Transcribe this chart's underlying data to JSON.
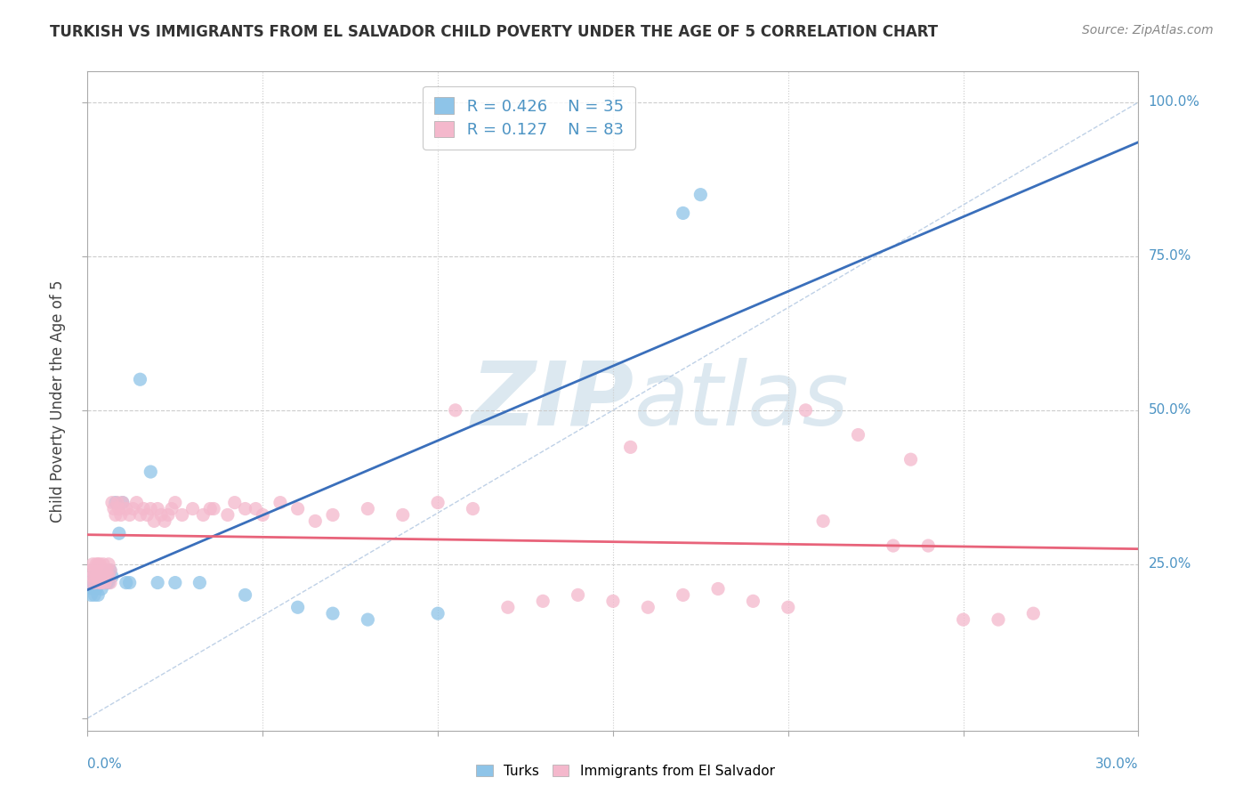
{
  "title": "TURKISH VS IMMIGRANTS FROM EL SALVADOR CHILD POVERTY UNDER THE AGE OF 5 CORRELATION CHART",
  "source": "Source: ZipAtlas.com",
  "ylabel": "Child Poverty Under the Age of 5",
  "xmin": 0.0,
  "xmax": 0.3,
  "ymin": 0.0,
  "ymax": 1.05,
  "watermark_zip": "ZIP",
  "watermark_atlas": "atlas",
  "legend_r1": "R = 0.426",
  "legend_n1": "N = 35",
  "legend_r2": "R = 0.127",
  "legend_n2": "N = 83",
  "color_turks": "#8ec4e8",
  "color_salvador": "#f4b8cc",
  "color_line_turks": "#3a6fbb",
  "color_line_salvador": "#e8637a",
  "color_diagonal": "#b8cce4",
  "turks_x": [
    0.001,
    0.001,
    0.0015,
    0.0015,
    0.002,
    0.002,
    0.0025,
    0.0025,
    0.003,
    0.003,
    0.0035,
    0.004,
    0.0045,
    0.005,
    0.0055,
    0.006,
    0.0065,
    0.007,
    0.008,
    0.009,
    0.01,
    0.011,
    0.012,
    0.015,
    0.018,
    0.02,
    0.025,
    0.032,
    0.045,
    0.06,
    0.07,
    0.08,
    0.1,
    0.17,
    0.175
  ],
  "turks_y": [
    0.22,
    0.2,
    0.23,
    0.21,
    0.22,
    0.2,
    0.22,
    0.21,
    0.23,
    0.2,
    0.22,
    0.21,
    0.22,
    0.23,
    0.22,
    0.22,
    0.24,
    0.23,
    0.35,
    0.3,
    0.35,
    0.22,
    0.22,
    0.55,
    0.4,
    0.22,
    0.22,
    0.22,
    0.2,
    0.18,
    0.17,
    0.16,
    0.17,
    0.82,
    0.85
  ],
  "salvador_x": [
    0.001,
    0.001,
    0.0015,
    0.0015,
    0.002,
    0.002,
    0.0025,
    0.0025,
    0.003,
    0.003,
    0.0035,
    0.0035,
    0.004,
    0.004,
    0.0045,
    0.0045,
    0.005,
    0.005,
    0.0055,
    0.006,
    0.006,
    0.0065,
    0.0065,
    0.007,
    0.0075,
    0.008,
    0.0085,
    0.009,
    0.0095,
    0.01,
    0.011,
    0.012,
    0.013,
    0.014,
    0.015,
    0.016,
    0.017,
    0.018,
    0.019,
    0.02,
    0.021,
    0.022,
    0.023,
    0.024,
    0.025,
    0.027,
    0.03,
    0.033,
    0.036,
    0.04,
    0.045,
    0.05,
    0.055,
    0.06,
    0.065,
    0.07,
    0.08,
    0.09,
    0.1,
    0.11,
    0.12,
    0.13,
    0.14,
    0.15,
    0.16,
    0.17,
    0.18,
    0.19,
    0.2,
    0.21,
    0.22,
    0.23,
    0.24,
    0.25,
    0.26,
    0.27,
    0.035,
    0.042,
    0.048,
    0.105,
    0.155,
    0.205,
    0.235
  ],
  "salvador_y": [
    0.24,
    0.22,
    0.25,
    0.23,
    0.24,
    0.22,
    0.25,
    0.23,
    0.25,
    0.24,
    0.25,
    0.22,
    0.24,
    0.22,
    0.25,
    0.23,
    0.24,
    0.22,
    0.24,
    0.23,
    0.25,
    0.24,
    0.22,
    0.35,
    0.34,
    0.33,
    0.35,
    0.34,
    0.33,
    0.35,
    0.34,
    0.33,
    0.34,
    0.35,
    0.33,
    0.34,
    0.33,
    0.34,
    0.32,
    0.34,
    0.33,
    0.32,
    0.33,
    0.34,
    0.35,
    0.33,
    0.34,
    0.33,
    0.34,
    0.33,
    0.34,
    0.33,
    0.35,
    0.34,
    0.32,
    0.33,
    0.34,
    0.33,
    0.35,
    0.34,
    0.18,
    0.19,
    0.2,
    0.19,
    0.18,
    0.2,
    0.21,
    0.19,
    0.18,
    0.32,
    0.46,
    0.28,
    0.28,
    0.16,
    0.16,
    0.17,
    0.34,
    0.35,
    0.34,
    0.5,
    0.44,
    0.5,
    0.42
  ]
}
